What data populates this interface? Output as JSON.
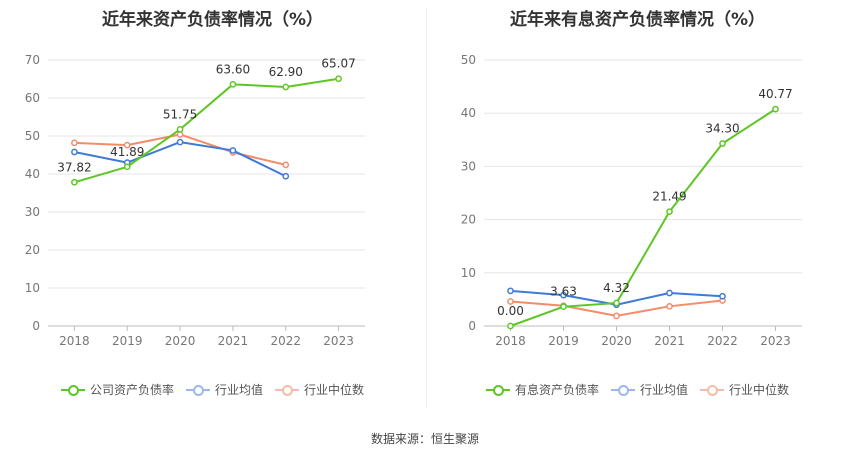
{
  "charts": [
    {
      "title": "近年来资产负债率情况（%）",
      "legend": [
        {
          "label": "公司资产负债率",
          "color": "#5ec624"
        },
        {
          "label": "行业均值",
          "color": "#3f7ad8"
        },
        {
          "label": "行业中位数",
          "color": "#f28c6b"
        }
      ]
    },
    {
      "title": "近年来有息资产负债率情况（%）",
      "legend": [
        {
          "label": "有息资产负债率",
          "color": "#5ec624"
        },
        {
          "label": "行业均值",
          "color": "#3f7ad8"
        },
        {
          "label": "行业中位数",
          "color": "#f28c6b"
        }
      ]
    }
  ],
  "source": "数据来源：恒生聚源",
  "chart_data": [
    {
      "type": "line",
      "title": "近年来资产负债率情况（%）",
      "categories": [
        "2018",
        "2019",
        "2020",
        "2021",
        "2022",
        "2023"
      ],
      "ylim": [
        0,
        70
      ],
      "yticks": [
        0,
        10,
        20,
        30,
        40,
        50,
        60,
        70
      ],
      "grid": true,
      "legend_position": "bottom",
      "series": [
        {
          "name": "公司资产负债率",
          "color": "#5ec624",
          "values": [
            37.82,
            41.89,
            51.75,
            63.6,
            62.9,
            65.07
          ],
          "labels": [
            "37.82",
            "41.89",
            "51.75",
            "63.60",
            "62.90",
            "65.07"
          ]
        },
        {
          "name": "行业均值",
          "color": "#3f7ad8",
          "values": [
            45.8,
            43.0,
            48.4,
            46.2,
            39.4,
            null
          ]
        },
        {
          "name": "行业中位数",
          "color": "#f28c6b",
          "values": [
            48.2,
            47.6,
            50.4,
            45.7,
            42.4,
            null
          ]
        }
      ]
    },
    {
      "type": "line",
      "title": "近年来有息资产负债率情况（%）",
      "categories": [
        "2018",
        "2019",
        "2020",
        "2021",
        "2022",
        "2023"
      ],
      "ylim": [
        0,
        50
      ],
      "yticks": [
        0,
        10,
        20,
        30,
        40,
        50
      ],
      "grid": true,
      "legend_position": "bottom",
      "series": [
        {
          "name": "有息资产负债率",
          "color": "#5ec624",
          "values": [
            0.0,
            3.63,
            4.32,
            21.49,
            34.3,
            40.77
          ],
          "labels": [
            "0.00",
            "3.63",
            "4.32",
            "21.49",
            "34.30",
            "40.77"
          ]
        },
        {
          "name": "行业均值",
          "color": "#3f7ad8",
          "values": [
            6.6,
            5.8,
            4.0,
            6.2,
            5.6,
            null
          ]
        },
        {
          "name": "行业中位数",
          "color": "#f28c6b",
          "values": [
            4.6,
            3.8,
            1.9,
            3.7,
            4.8,
            null
          ]
        }
      ]
    }
  ]
}
